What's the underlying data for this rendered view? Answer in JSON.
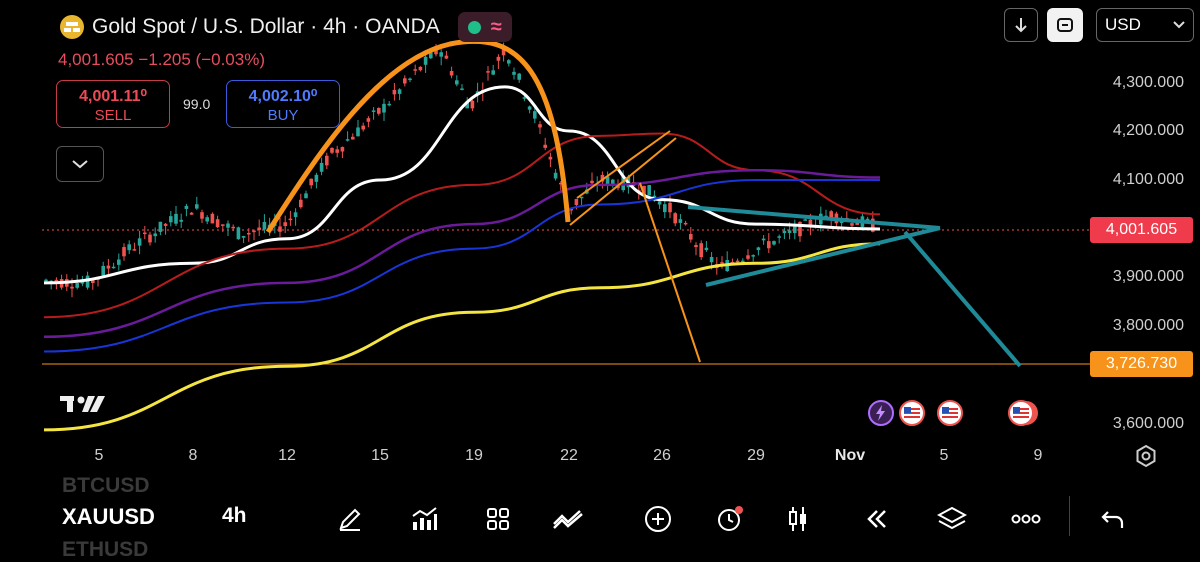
{
  "header": {
    "title": "Gold Spot / U.S. Dollar · 4h · OANDA",
    "price_change": "4,001.605  −1.205 (−0.03%)",
    "indicators": {
      "live_dot_color": "#1fbf8a",
      "wave_glyph": "≈"
    }
  },
  "trade": {
    "sell_price": "4,001.11⁰",
    "sell_label": "SELL",
    "buy_price": "4,002.10⁰",
    "buy_label": "BUY",
    "spread": "99.0"
  },
  "toolbar": {
    "currency": "USD"
  },
  "axis": {
    "y_labels": [
      "4,300.000",
      "4,200.000",
      "4,100.000",
      "3,900.000",
      "3,800.000",
      "3,600.000"
    ],
    "current_price_tag": "4,001.605",
    "level_tag": "3,726.730",
    "x_labels": [
      "5",
      "8",
      "12",
      "15",
      "19",
      "22",
      "26",
      "29",
      "Nov",
      "5",
      "9"
    ]
  },
  "bottom_bar": {
    "symbol_above": "BTCUSD",
    "symbol": "XAUUSD",
    "symbol_below": "ETHUSD",
    "timeframe": "4h"
  },
  "colors": {
    "up": "#26a69a",
    "down": "#ef5350",
    "current_price": "#ef5350",
    "level": "#f7931a",
    "ma_white": "#ffffff",
    "ma_red": "#b71c1c",
    "ma_purple": "#6a1b9a",
    "ma_blue": "#1a35d6",
    "ma_yellow": "#f4e542",
    "triangle": "#1f8a98",
    "arc": "#f7931a"
  },
  "chart_data": {
    "type": "candlestick",
    "symbol": "XAUUSD",
    "timeframe": "4h",
    "y_ticks": [
      4300,
      4200,
      4100,
      3900,
      3800,
      3600
    ],
    "x_ticks": [
      "5",
      "8",
      "12",
      "15",
      "19",
      "22",
      "26",
      "29",
      "Nov",
      "5",
      "9"
    ],
    "current_price": 4001.605,
    "horizontal_level": 3726.73,
    "moving_averages": [
      {
        "color": "white",
        "points_ymd": [
          [
            "Oct 3",
            3890
          ],
          [
            "Oct 8",
            3930
          ],
          [
            "Oct 12",
            3980
          ],
          [
            "Oct 15",
            4100
          ],
          [
            "Oct 20",
            4290
          ],
          [
            "Oct 22",
            4200
          ],
          [
            "Oct 26",
            4060
          ],
          [
            "Oct 29",
            4010
          ],
          [
            "Nov 2",
            4000
          ]
        ]
      },
      {
        "color": "red",
        "points_ymd": [
          [
            "Oct 3",
            3820
          ],
          [
            "Oct 12",
            3960
          ],
          [
            "Oct 19",
            4090
          ],
          [
            "Oct 23",
            4190
          ],
          [
            "Oct 26",
            4195
          ],
          [
            "Oct 29",
            4120
          ],
          [
            "Nov 2",
            4030
          ]
        ]
      },
      {
        "color": "purple",
        "points_ymd": [
          [
            "Oct 3",
            3780
          ],
          [
            "Oct 12",
            3890
          ],
          [
            "Oct 19",
            4010
          ],
          [
            "Oct 23",
            4090
          ],
          [
            "Oct 29",
            4120
          ],
          [
            "Nov 2",
            4105
          ]
        ]
      },
      {
        "color": "blue",
        "points_ymd": [
          [
            "Oct 3",
            3750
          ],
          [
            "Oct 12",
            3850
          ],
          [
            "Oct 19",
            3960
          ],
          [
            "Oct 23",
            4050
          ],
          [
            "Oct 29",
            4100
          ],
          [
            "Nov 2",
            4100
          ]
        ]
      },
      {
        "color": "yellow",
        "points_ymd": [
          [
            "Oct 3",
            3590
          ],
          [
            "Oct 12",
            3720
          ],
          [
            "Oct 19",
            3830
          ],
          [
            "Oct 23",
            3880
          ],
          [
            "Oct 29",
            3930
          ],
          [
            "Nov 2",
            3970
          ]
        ]
      }
    ]
  }
}
